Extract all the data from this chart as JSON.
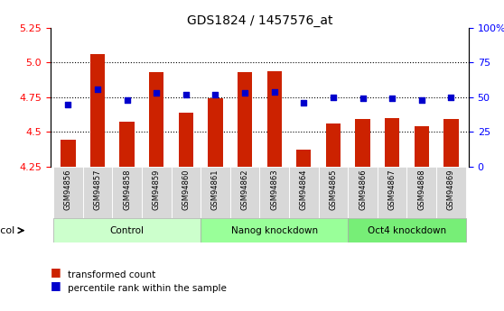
{
  "title": "GDS1824 / 1457576_at",
  "samples": [
    "GSM94856",
    "GSM94857",
    "GSM94858",
    "GSM94859",
    "GSM94860",
    "GSM94861",
    "GSM94862",
    "GSM94863",
    "GSM94864",
    "GSM94865",
    "GSM94866",
    "GSM94867",
    "GSM94868",
    "GSM94869"
  ],
  "red_values": [
    4.44,
    5.06,
    4.57,
    4.93,
    4.64,
    4.74,
    4.93,
    4.94,
    4.37,
    4.56,
    4.59,
    4.6,
    4.54,
    4.59
  ],
  "blue_values": [
    4.7,
    4.81,
    4.73,
    4.78,
    4.77,
    4.77,
    4.78,
    4.79,
    4.71,
    4.75,
    4.74,
    4.74,
    4.73,
    4.75
  ],
  "groups": [
    {
      "label": "Control",
      "start": 0,
      "end": 5,
      "color": "#ccffcc"
    },
    {
      "label": "Nanog knockdown",
      "start": 5,
      "end": 10,
      "color": "#99ff99"
    },
    {
      "label": "Oct4 knockdown",
      "start": 10,
      "end": 14,
      "color": "#77ee77"
    }
  ],
  "ylim_left": [
    4.25,
    5.25
  ],
  "ylim_right": [
    0,
    100
  ],
  "yticks_left": [
    4.25,
    4.5,
    4.75,
    5.0,
    5.25
  ],
  "yticks_right": [
    0,
    25,
    50,
    75,
    100
  ],
  "grid_yticks": [
    4.5,
    4.75,
    5.0
  ],
  "bar_color": "#cc2200",
  "dot_color": "#0000cc",
  "bar_width": 0.5
}
